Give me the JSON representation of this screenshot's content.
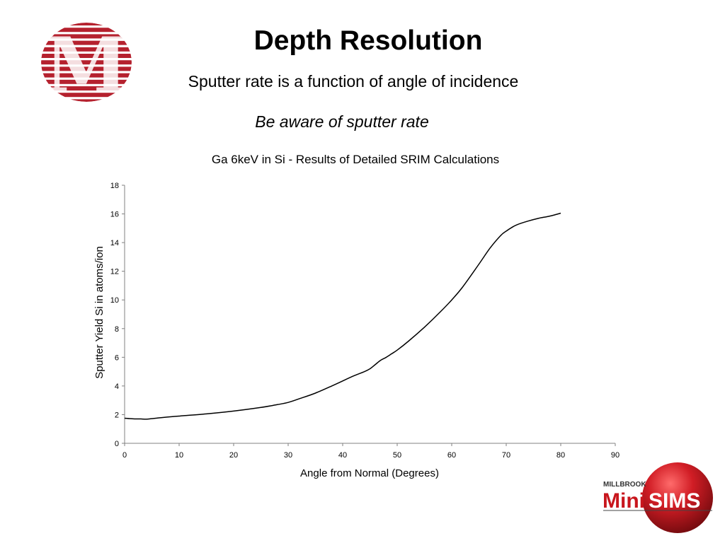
{
  "slide": {
    "title": "Depth Resolution",
    "subtitle": "Sputter rate is a function of angle of incidence",
    "note": "Be aware of sputter rate"
  },
  "logos": {
    "brand_left": "M",
    "brand_right_top": "MILLBROOK",
    "brand_right_mini": "Mini",
    "brand_right_sims": "SIMS"
  },
  "colors": {
    "logo_red": "#b5212e",
    "sims_red": "#c8161d",
    "line": "#000000",
    "axis": "#808080"
  },
  "chart_data": {
    "type": "line",
    "title": "Ga 6keV in Si - Results of Detailed SRIM Calculations",
    "xlabel": "Angle from Normal (Degrees)",
    "ylabel": "Sputter Yield Si in atoms/ion",
    "xlim": [
      0,
      90
    ],
    "ylim": [
      0,
      18
    ],
    "xticks": [
      0,
      10,
      20,
      30,
      40,
      50,
      60,
      70,
      80,
      90
    ],
    "yticks": [
      0,
      2,
      4,
      6,
      8,
      10,
      12,
      14,
      16,
      18
    ],
    "grid": false,
    "legend": "none",
    "series": [
      {
        "x": [
          0,
          1,
          2,
          3,
          4,
          5,
          7,
          10,
          15,
          20,
          25,
          28,
          30,
          32,
          35,
          38,
          40,
          42,
          44,
          45,
          46,
          47,
          48,
          49,
          50,
          52,
          55,
          58,
          60,
          62,
          65,
          67,
          69,
          70,
          71,
          72,
          74,
          76,
          78,
          80
        ],
        "y": [
          1.75,
          1.72,
          1.7,
          1.7,
          1.68,
          1.72,
          1.8,
          1.9,
          2.05,
          2.25,
          2.5,
          2.7,
          2.85,
          3.1,
          3.5,
          4.0,
          4.35,
          4.7,
          5.0,
          5.2,
          5.5,
          5.8,
          6.0,
          6.25,
          6.5,
          7.1,
          8.1,
          9.2,
          10.0,
          10.9,
          12.5,
          13.6,
          14.5,
          14.8,
          15.05,
          15.25,
          15.5,
          15.7,
          15.85,
          16.05
        ]
      }
    ]
  }
}
